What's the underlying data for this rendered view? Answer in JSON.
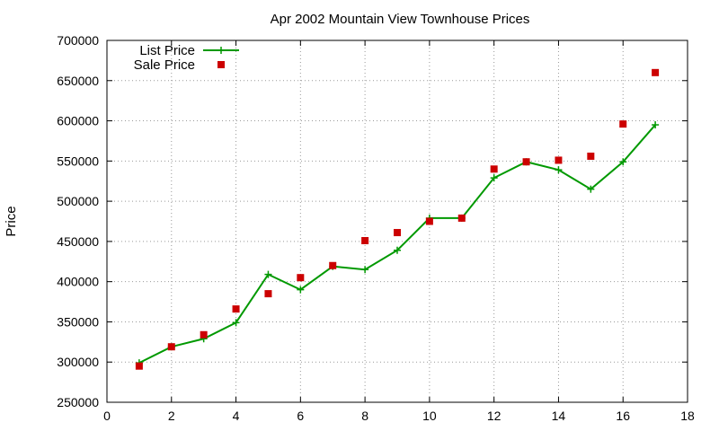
{
  "chart_data": {
    "type": "line",
    "title": "Apr 2002 Mountain View Townhouse Prices",
    "xlabel": "",
    "ylabel": "Price",
    "xlim": [
      0,
      18
    ],
    "ylim": [
      250000,
      700000
    ],
    "xticks": [
      "0",
      "2",
      "4",
      "6",
      "8",
      "10",
      "12",
      "14",
      "16",
      "18"
    ],
    "yticks": [
      "250000",
      "300000",
      "350000",
      "400000",
      "450000",
      "500000",
      "550000",
      "600000",
      "650000",
      "700000"
    ],
    "grid": true,
    "legend_position": "top-left",
    "x": [
      1,
      2,
      3,
      4,
      5,
      6,
      7,
      8,
      9,
      10,
      11,
      12,
      13,
      14,
      15,
      16,
      17
    ],
    "series": [
      {
        "name": "List Price",
        "style": "line-with-plus-markers",
        "color": "#009900",
        "values": [
          299000,
          319000,
          329000,
          349000,
          409000,
          390000,
          419000,
          415000,
          439000,
          479000,
          479000,
          529000,
          549000,
          539000,
          515000,
          549000,
          595000
        ]
      },
      {
        "name": "Sale Price",
        "style": "square-markers",
        "color": "#cc0000",
        "values": [
          295000,
          319000,
          334000,
          366000,
          385000,
          405000,
          420000,
          451000,
          461000,
          475000,
          479000,
          540000,
          549000,
          551000,
          556000,
          596000,
          660000
        ]
      }
    ]
  }
}
